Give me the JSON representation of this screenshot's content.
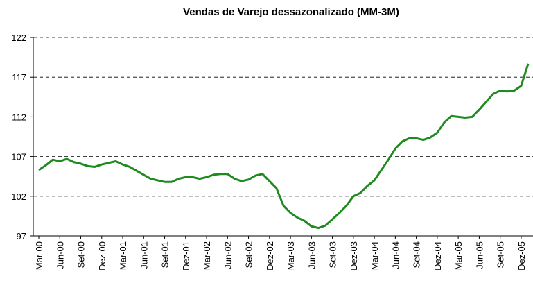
{
  "chart_data": {
    "type": "line",
    "title": "Vendas de Varejo dessazonalizado (MM-3M)",
    "categories": [
      "Mar-00",
      null,
      null,
      "Jun-00",
      null,
      null,
      "Set-00",
      null,
      null,
      "Dez-00",
      null,
      null,
      "Mar-01",
      null,
      null,
      "Jun-01",
      null,
      null,
      "Set-01",
      null,
      null,
      "Dez-01",
      null,
      null,
      "Mar-02",
      null,
      null,
      "Jun-02",
      null,
      null,
      "Set-02",
      null,
      null,
      "Dez-02",
      null,
      null,
      "Mar-03",
      null,
      null,
      "Jun-03",
      null,
      null,
      "Set-03",
      null,
      null,
      "Dez-03",
      null,
      null,
      "Mar-04",
      null,
      null,
      "Jun-04",
      null,
      null,
      "Set-04",
      null,
      null,
      "Dez-04",
      null,
      null,
      "Mar-05",
      null,
      null,
      "Jun-05",
      null,
      null,
      "Set-05",
      null,
      null,
      "Dez-05",
      null
    ],
    "series": [
      {
        "name": "Vendas de Varejo",
        "color": "#1f8a1f",
        "values": [
          105.3,
          105.9,
          106.6,
          106.4,
          106.7,
          106.3,
          106.1,
          105.8,
          105.7,
          106.0,
          106.2,
          106.4,
          106.0,
          105.7,
          105.2,
          104.7,
          104.2,
          104.0,
          103.8,
          103.8,
          104.2,
          104.4,
          104.4,
          104.2,
          104.4,
          104.7,
          104.8,
          104.8,
          104.2,
          103.9,
          104.1,
          104.6,
          104.8,
          103.9,
          103.0,
          100.8,
          99.9,
          99.3,
          98.9,
          98.2,
          98.0,
          98.3,
          99.1,
          99.9,
          100.8,
          102.0,
          102.4,
          103.3,
          104.0,
          105.3,
          106.6,
          108.0,
          108.9,
          109.3,
          109.3,
          109.1,
          109.4,
          110.0,
          111.3,
          112.1,
          112.0,
          111.9,
          112.0,
          112.9,
          113.9,
          114.9,
          115.3,
          115.2,
          115.3,
          115.9,
          118.7
        ]
      }
    ],
    "ylim": [
      97,
      122
    ],
    "yticks": [
      97,
      102,
      107,
      112,
      117,
      122
    ],
    "grid": true
  }
}
